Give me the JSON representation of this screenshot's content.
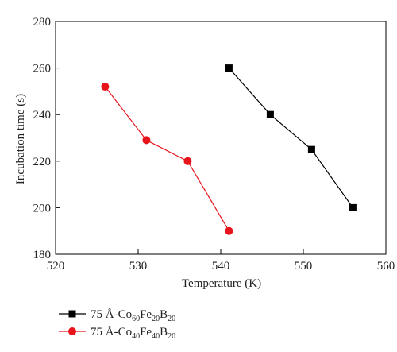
{
  "chart_data": {
    "type": "line",
    "xlabel": "Temperature (K)",
    "ylabel": "Incubation time (s)",
    "xlim": [
      520,
      560
    ],
    "ylim": [
      180,
      280
    ],
    "xticks": [
      520,
      530,
      540,
      550,
      560
    ],
    "yticks": [
      180,
      200,
      220,
      240,
      260,
      280
    ],
    "grid": false,
    "legend_position": "bottom-left, below plot",
    "series": [
      {
        "name": "75 Å-Co60Fe20B20",
        "name_parts": {
          "prefix": "75 Å-Co",
          "sub1": "60",
          "mid1": "Fe",
          "sub2": "20",
          "mid2": "B",
          "sub3": "20"
        },
        "color": "#000000",
        "marker": "square",
        "x": [
          541,
          546,
          551,
          556
        ],
        "y": [
          260,
          240,
          225,
          200
        ]
      },
      {
        "name": "75 Å-Co40Fe40B20",
        "name_parts": {
          "prefix": "75 Å-Co",
          "sub1": "40",
          "mid1": "Fe",
          "sub2": "40",
          "mid2": "B",
          "sub3": "20"
        },
        "color": "#e8141c",
        "marker": "circle",
        "x": [
          526,
          531,
          536,
          541
        ],
        "y": [
          252,
          229,
          220,
          190
        ]
      }
    ]
  }
}
